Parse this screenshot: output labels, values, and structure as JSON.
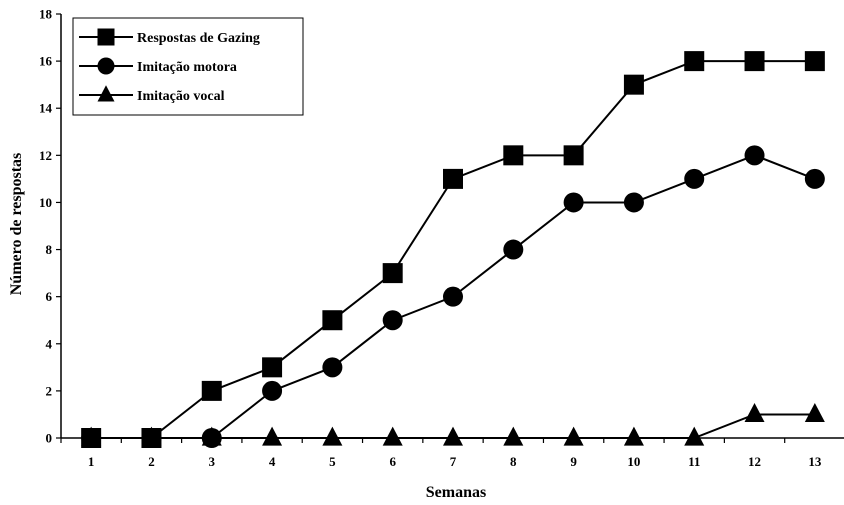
{
  "chart_data": {
    "type": "line",
    "xlabel": "Semanas",
    "ylabel": "Número de respostas",
    "ylim": [
      0,
      18
    ],
    "yticks": [
      0,
      2,
      4,
      6,
      8,
      10,
      12,
      14,
      16,
      18
    ],
    "categories": [
      "1",
      "2",
      "3",
      "4",
      "5",
      "6",
      "7",
      "8",
      "9",
      "10",
      "11",
      "12",
      "13"
    ],
    "grid": false,
    "legend_position": "top-left",
    "series": [
      {
        "name": "Respostas de Gazing",
        "marker": "square",
        "color": "#000000",
        "values": [
          0,
          0,
          2,
          3,
          5,
          7,
          11,
          12,
          12,
          15,
          16,
          16,
          16
        ]
      },
      {
        "name": "Imitação motora",
        "marker": "circle",
        "color": "#000000",
        "values": [
          0,
          0,
          0,
          2,
          3,
          5,
          6,
          8,
          10,
          10,
          11,
          12,
          11
        ]
      },
      {
        "name": "Imitação vocal",
        "marker": "triangle",
        "color": "#000000",
        "values": [
          0,
          0,
          0,
          0,
          0,
          0,
          0,
          0,
          0,
          0,
          0,
          1,
          1
        ]
      }
    ]
  }
}
